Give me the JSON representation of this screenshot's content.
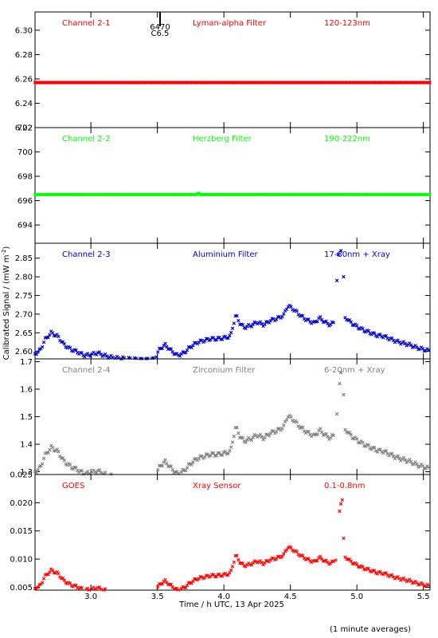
{
  "xlabel": "Time / h UTC, 13 Apr 2025",
  "ylabel": "Calibrated Signal / (mW m",
  "ylabel_sup": "-2",
  "ylabel_close": ")",
  "footnote": "(1 minute averages)",
  "xlim": [
    2.58,
    5.55
  ],
  "xticks": [
    "3.0",
    "3.5",
    "4.0",
    "4.5",
    "5.0",
    "5.5"
  ],
  "flare_marker": {
    "x": 3.52,
    "label_top": "6470",
    "label_bottom": "C6.5"
  },
  "chart_data": [
    {
      "type": "scatter",
      "panel": "Channel 2-1",
      "filter": "Lyman-alpha Filter",
      "band": "120-123nm",
      "color": "#ff0000",
      "ylim": [
        6.22,
        6.315
      ],
      "yticks": [
        "6.22",
        "6.24",
        "6.26",
        "6.28",
        "6.30"
      ],
      "shape": "flat",
      "level": 6.257
    },
    {
      "type": "scatter",
      "panel": "Channel 2-2",
      "filter": "Herzberg Filter",
      "band": "190-222nm",
      "color": "#00ff00",
      "ylim": [
        692.5,
        702
      ],
      "yticks": [
        "694",
        "696",
        "698",
        "700",
        "702"
      ],
      "shape": "flat",
      "level": 696.5
    },
    {
      "type": "scatter",
      "panel": "Channel 2-3",
      "filter": "Aluminium Filter",
      "band": "17-80nm + Xray",
      "color": "#0000cc",
      "ylim": [
        2.58,
        2.89
      ],
      "yticks": [
        "2.60",
        "2.65",
        "2.70",
        "2.75",
        "2.80",
        "2.85"
      ],
      "shape": "profile",
      "base": 2.575,
      "scale": 0.0235,
      "spikes": [
        [
          4.85,
          2.79
        ],
        [
          4.86,
          2.86
        ],
        [
          4.88,
          2.87
        ],
        [
          4.9,
          2.8
        ]
      ]
    },
    {
      "type": "scatter",
      "panel": "Channel 2-4",
      "filter": "Zirconium Filter",
      "band": "6-20nm + Xray",
      "color": "#808080",
      "ylim": [
        1.29,
        1.71
      ],
      "yticks": [
        "1.3",
        "1.4",
        "1.5",
        "1.6",
        "1.7"
      ],
      "shape": "profile",
      "base": 1.27,
      "scale": 0.0372,
      "spikes": [
        [
          4.85,
          1.51
        ],
        [
          4.87,
          1.62
        ],
        [
          4.88,
          1.66
        ],
        [
          4.9,
          1.58
        ]
      ]
    },
    {
      "type": "scatter",
      "panel": "GOES",
      "filter": "Xray Sensor",
      "band": "0.1-0.8nm",
      "color": "#ff0000",
      "ylim": [
        0.0045,
        0.025
      ],
      "yticks": [
        "0.005",
        "0.010",
        "0.015",
        "0.020",
        "0.025"
      ],
      "shape": "profile",
      "base": 0.0037,
      "scale": 0.00135,
      "spikes": [
        [
          4.84,
          0.0098
        ],
        [
          4.87,
          0.0185
        ],
        [
          4.88,
          0.0198
        ],
        [
          4.89,
          0.0205
        ],
        [
          4.9,
          0.0137
        ]
      ]
    }
  ],
  "profile_knots": [
    [
      2.58,
      0.8
    ],
    [
      2.62,
      1.2
    ],
    [
      2.65,
      2.3
    ],
    [
      2.7,
      3.2
    ],
    [
      2.75,
      2.8
    ],
    [
      2.8,
      1.8
    ],
    [
      2.85,
      1.3
    ],
    [
      2.9,
      1.0
    ],
    [
      2.95,
      0.6
    ],
    [
      3.0,
      0.7
    ],
    [
      3.05,
      0.9
    ],
    [
      3.1,
      0.6
    ],
    [
      3.15,
      0.4
    ],
    [
      3.2,
      0.3
    ],
    [
      3.3,
      0.2
    ],
    [
      3.4,
      0.1
    ],
    [
      3.48,
      0.2
    ],
    [
      3.52,
      1.4
    ],
    [
      3.56,
      1.8
    ],
    [
      3.6,
      1.2
    ],
    [
      3.65,
      0.6
    ],
    [
      3.7,
      0.9
    ],
    [
      3.75,
      1.6
    ],
    [
      3.8,
      2.1
    ],
    [
      3.85,
      2.3
    ],
    [
      3.9,
      2.5
    ],
    [
      3.95,
      2.5
    ],
    [
      4.0,
      2.6
    ],
    [
      4.05,
      2.8
    ],
    [
      4.07,
      4.1
    ],
    [
      4.09,
      5.2
    ],
    [
      4.12,
      4.3
    ],
    [
      4.15,
      3.8
    ],
    [
      4.2,
      4.0
    ],
    [
      4.25,
      4.4
    ],
    [
      4.3,
      4.1
    ],
    [
      4.35,
      4.6
    ],
    [
      4.4,
      4.8
    ],
    [
      4.45,
      5.2
    ],
    [
      4.48,
      6.3
    ],
    [
      4.52,
      5.9
    ],
    [
      4.58,
      5.1
    ],
    [
      4.63,
      4.6
    ],
    [
      4.68,
      4.3
    ],
    [
      4.72,
      4.9
    ],
    [
      4.76,
      4.4
    ],
    [
      4.8,
      4.1
    ],
    [
      4.83,
      4.4
    ],
    [
      4.92,
      4.9
    ],
    [
      4.95,
      4.4
    ],
    [
      5.0,
      3.9
    ],
    [
      5.05,
      3.5
    ],
    [
      5.1,
      3.2
    ],
    [
      5.15,
      2.9
    ],
    [
      5.2,
      2.8
    ],
    [
      5.25,
      2.5
    ],
    [
      5.3,
      2.2
    ],
    [
      5.35,
      2.0
    ],
    [
      5.4,
      1.8
    ],
    [
      5.45,
      1.5
    ],
    [
      5.5,
      1.3
    ],
    [
      5.55,
      1.1
    ]
  ]
}
